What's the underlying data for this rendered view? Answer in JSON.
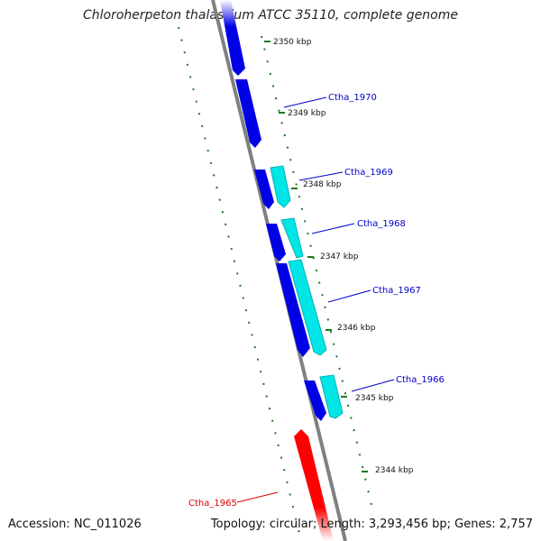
{
  "title": "Chloroherpeton thalassium ATCC 35110, complete genome",
  "footer": {
    "accession": "Accession: NC_011026",
    "summary": "Topology: circular; Length: 3,293,456 bp; Genes: 2,757"
  },
  "colors": {
    "backbone": "#808080",
    "cds_forward": "#0000e6",
    "rna": "#00e6e6",
    "cds_reverse": "#ff0000",
    "tick": "#1a7a1a",
    "label_blue": "#0000cc",
    "label_red": "#dd0000"
  },
  "ticks": [
    {
      "label": "2350 kbp"
    },
    {
      "label": "2349 kbp"
    },
    {
      "label": "2348 kbp"
    },
    {
      "label": "2347 kbp"
    },
    {
      "label": "2346 kbp"
    },
    {
      "label": "2345 kbp"
    },
    {
      "label": "2344 kbp"
    }
  ],
  "genes": [
    {
      "label": "Ctha_1970"
    },
    {
      "label": "Ctha_1969"
    },
    {
      "label": "Ctha_1968"
    },
    {
      "label": "Ctha_1967"
    },
    {
      "label": "Ctha_1966"
    },
    {
      "label": "Ctha_1965"
    }
  ]
}
